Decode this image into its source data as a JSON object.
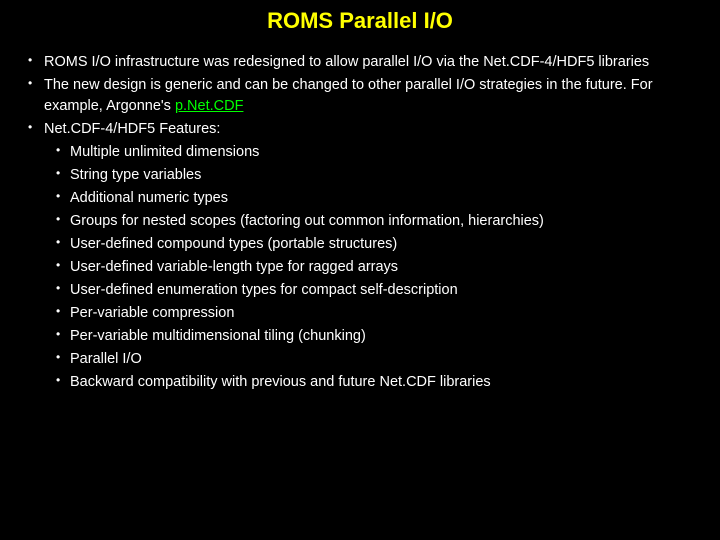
{
  "colors": {
    "background": "#000000",
    "title": "#ffff00",
    "text": "#ffffff",
    "link": "#00ff00"
  },
  "title": "ROMS Parallel I/O",
  "bullets": [
    {
      "text": "ROMS I/O infrastructure was redesigned to allow parallel I/O via the Net.CDF-4/HDF5 libraries"
    },
    {
      "text_before": "The new design is generic and can be changed to other parallel I/O strategies in the future.  For example, Argonne's ",
      "link_text": "p.Net.CDF",
      "text_after": ""
    },
    {
      "text": "Net.CDF-4/HDF5 Features:",
      "sub": [
        "Multiple unlimited dimensions",
        "String type variables",
        "Additional numeric types",
        "Groups for nested scopes (factoring out common information, hierarchies)",
        "User-defined compound types (portable structures)",
        "User-defined variable-length type for ragged arrays",
        "User-defined enumeration types for compact self-description",
        "Per-variable compression",
        "Per-variable multidimensional tiling (chunking)",
        "Parallel I/O",
        "Backward compatibility with previous and future Net.CDF libraries"
      ]
    }
  ]
}
